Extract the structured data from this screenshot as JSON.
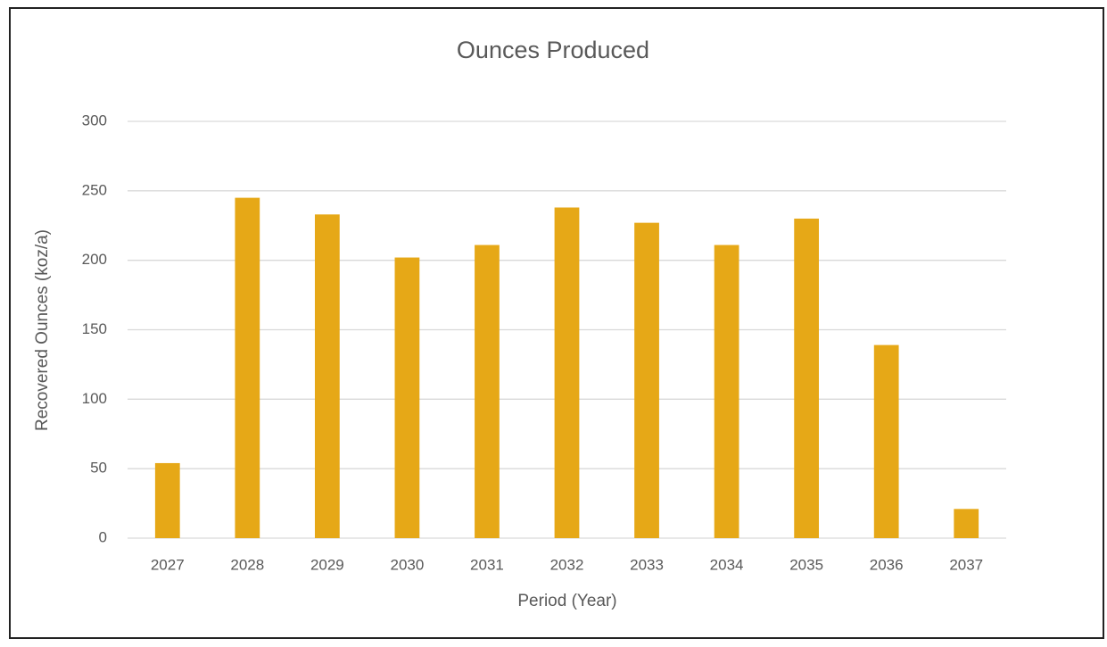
{
  "chart_data": {
    "type": "bar",
    "title": "Ounces Produced",
    "x_label": "Period (Year)",
    "y_label": "Recovered Ounces (koz/a)",
    "categories": [
      "2027",
      "2028",
      "2029",
      "2030",
      "2031",
      "2032",
      "2033",
      "2034",
      "2035",
      "2036",
      "2037"
    ],
    "values": [
      54,
      245,
      233,
      202,
      211,
      238,
      227,
      211,
      230,
      139,
      21
    ],
    "color": "#e6a817",
    "ylim": [
      0,
      300
    ],
    "yticks": [
      0,
      50,
      100,
      150,
      200,
      250,
      300
    ],
    "grid": true
  }
}
